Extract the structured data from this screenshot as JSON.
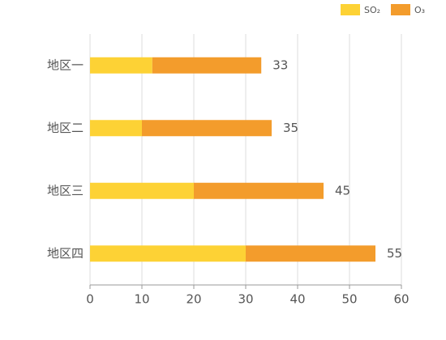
{
  "chart_data": {
    "type": "bar",
    "orientation": "horizontal",
    "stacked": true,
    "categories": [
      "地区一",
      "地区二",
      "地区三",
      "地区四"
    ],
    "series": [
      {
        "name": "SO₂",
        "color": "#fdd235",
        "values": [
          12,
          10,
          20,
          30
        ]
      },
      {
        "name": "O₃",
        "color": "#f39c2c",
        "values": [
          21,
          25,
          25,
          25
        ]
      }
    ],
    "totals": [
      33,
      35,
      45,
      55
    ],
    "xlim": [
      0,
      60
    ],
    "xticks": [
      0,
      10,
      20,
      30,
      40,
      50,
      60
    ],
    "grid": true,
    "legend": "top-right"
  }
}
